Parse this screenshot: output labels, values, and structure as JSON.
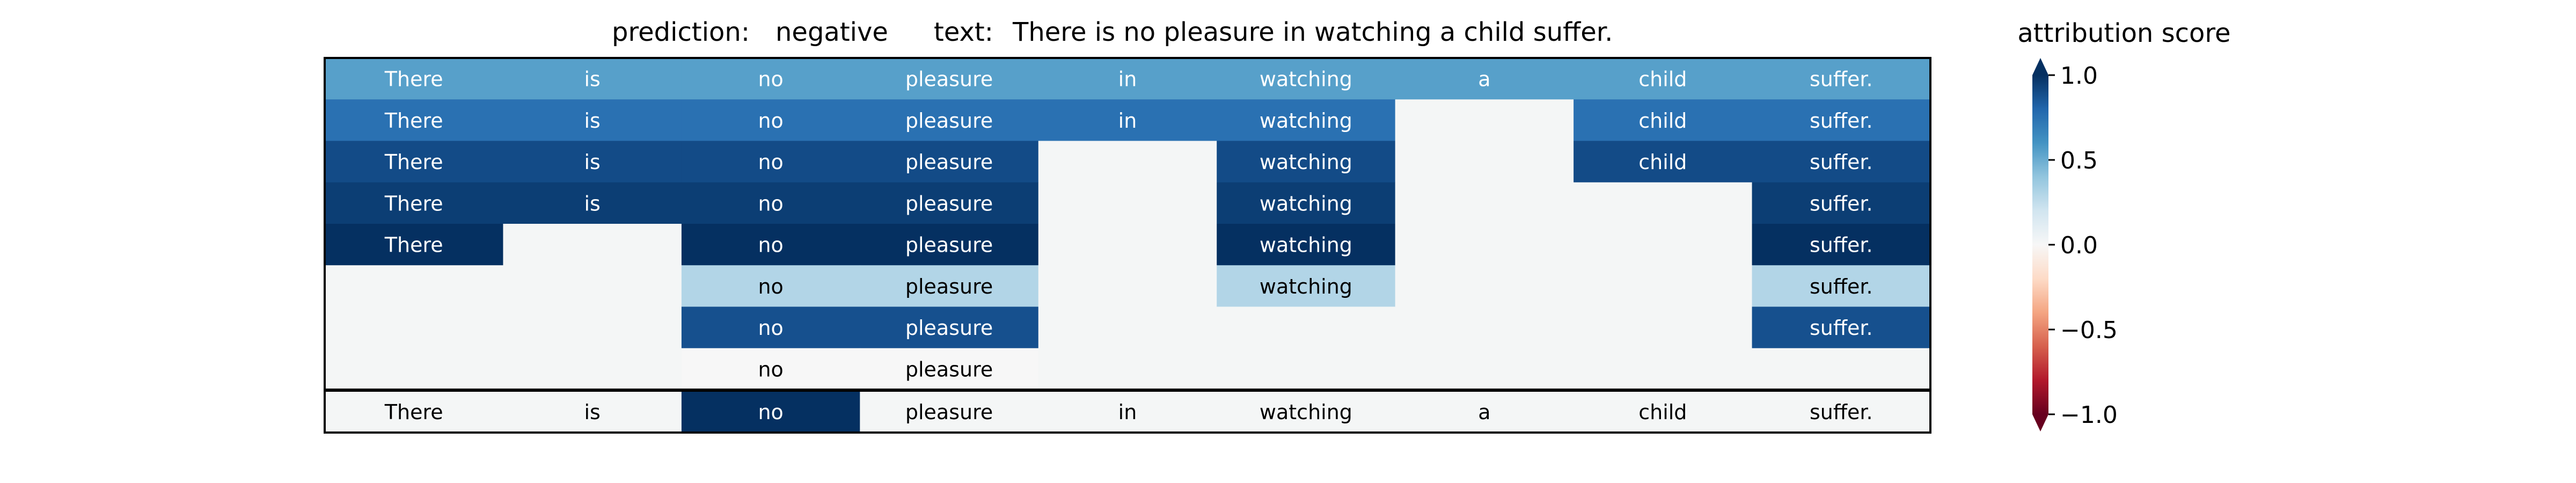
{
  "title": {
    "prediction_label": "prediction:",
    "prediction_value": "negative",
    "text_label": "text:",
    "text_value": "There is no pleasure in watching a child suffer."
  },
  "colorbar": {
    "title": "attribution score",
    "ticks": [
      "1.0",
      "0.5",
      "0.0",
      "−0.5",
      "−1.0"
    ],
    "tick_values": [
      1.0,
      0.5,
      0.0,
      -0.5,
      -1.0
    ],
    "range": [
      -1.0,
      1.0
    ],
    "colormap": "RdBu"
  },
  "colors": {
    "empty_cell": "#f4f6f6",
    "border": "#000000",
    "text_light": "#ffffff",
    "text_dark": "#000000"
  },
  "chart_data": {
    "type": "heatmap",
    "tokens": [
      "There",
      "is",
      "no",
      "pleasure",
      "in",
      "watching",
      "a",
      "child",
      "suffer."
    ],
    "rows": [
      [
        0.55,
        0.55,
        0.55,
        0.55,
        0.55,
        0.55,
        0.55,
        0.55,
        0.55
      ],
      [
        0.75,
        0.75,
        0.75,
        0.75,
        0.75,
        0.75,
        null,
        0.75,
        0.75
      ],
      [
        0.9,
        0.9,
        0.9,
        0.9,
        null,
        0.9,
        null,
        0.9,
        0.9
      ],
      [
        0.95,
        0.95,
        0.95,
        0.95,
        null,
        0.95,
        null,
        null,
        0.95
      ],
      [
        1.0,
        null,
        1.0,
        1.0,
        null,
        1.0,
        null,
        null,
        1.0
      ],
      [
        null,
        null,
        0.3,
        0.3,
        null,
        0.3,
        null,
        null,
        0.3
      ],
      [
        null,
        null,
        0.88,
        0.88,
        null,
        null,
        null,
        null,
        0.88
      ],
      [
        null,
        null,
        0.0,
        0.0,
        null,
        null,
        null,
        null,
        null
      ]
    ],
    "bottom_row": [
      0.0,
      0.0,
      1.0,
      0.0,
      0.0,
      0.0,
      0.0,
      0.0,
      0.0
    ],
    "value_range": [
      -1.0,
      1.0
    ]
  }
}
